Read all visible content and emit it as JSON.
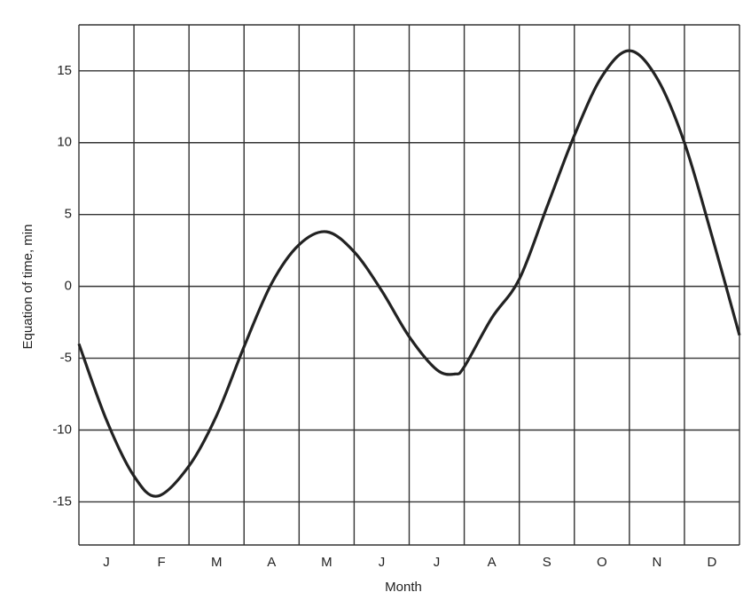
{
  "chart_data": {
    "type": "line",
    "x_label": "Month",
    "y_label": "Equation of time, min",
    "categories": [
      "J",
      "F",
      "M",
      "A",
      "M",
      "J",
      "J",
      "A",
      "S",
      "O",
      "N",
      "D"
    ],
    "xlim": [
      0,
      12
    ],
    "series": [
      {
        "color": "#222222",
        "x": [
          0,
          0.5,
          1,
          1.43,
          2,
          2.5,
          3,
          3.5,
          4,
          4.5,
          5,
          5.5,
          6,
          6.5,
          6.83,
          7,
          7.5,
          8,
          8.5,
          9,
          9.5,
          10,
          10.5,
          11,
          11.5,
          12
        ],
        "values": [
          -4.0,
          -9.3,
          -13.2,
          -14.6,
          -12.5,
          -9.0,
          -4.2,
          0.2,
          2.9,
          3.8,
          2.4,
          -0.3,
          -3.5,
          -5.8,
          -6.1,
          -5.6,
          -2.2,
          0.5,
          5.5,
          10.5,
          14.6,
          16.4,
          14.5,
          10.0,
          3.5,
          -3.4
        ]
      }
    ],
    "ylim": [
      -18,
      18.2
    ],
    "yticks": [
      -15,
      -10,
      -5,
      0,
      5,
      10,
      15
    ],
    "grid": true
  }
}
